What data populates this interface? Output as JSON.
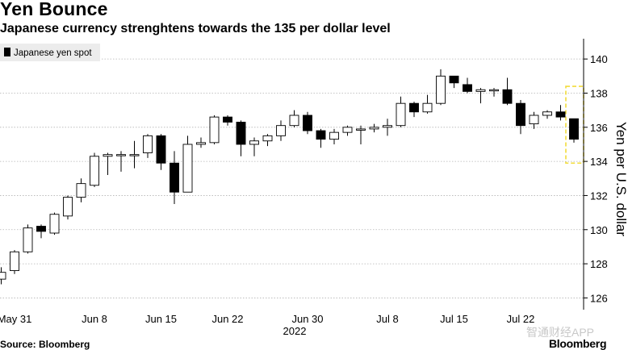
{
  "title": "Yen Bounce",
  "subtitle": "Japanese currency strenghtens towards the 135 per dollar level",
  "source": "Source: Bloomberg",
  "brand": "Bloomberg",
  "watermark": "智通财经APP",
  "colors": {
    "up": "#ffffff",
    "down": "#000000",
    "grid": "#b3b3b3",
    "highlight": "#f2dc3b"
  },
  "chart_data": {
    "type": "candlestick",
    "ylabel": "Yen per U.S. dollar",
    "ylim": [
      125.5,
      141
    ],
    "yticks": [
      126,
      128,
      130,
      132,
      134,
      136,
      138,
      140
    ],
    "legend": {
      "label": "Japanese yen spot",
      "position": "top-left"
    },
    "year_label": "2022",
    "xtick_labels": [
      "May 31",
      "Jun 8",
      "Jun 15",
      "Jun 22",
      "Jun 30",
      "Jul 8",
      "Jul 15",
      "Jul 22"
    ],
    "xtick_index": [
      1,
      7,
      12,
      17,
      23,
      29,
      34,
      39
    ],
    "highlight_range": {
      "from_index": 43,
      "to_index": 43,
      "y_from": 133.9,
      "y_to": 138.4
    },
    "candles": [
      {
        "date": "May 30",
        "open": 127.1,
        "high": 127.8,
        "low": 126.8,
        "close": 127.5
      },
      {
        "date": "May 31",
        "open": 127.6,
        "high": 128.8,
        "low": 127.4,
        "close": 128.7
      },
      {
        "date": "Jun 1",
        "open": 128.7,
        "high": 130.3,
        "low": 128.6,
        "close": 130.1
      },
      {
        "date": "Jun 2",
        "open": 130.2,
        "high": 130.3,
        "low": 129.5,
        "close": 129.9
      },
      {
        "date": "Jun 3",
        "open": 129.8,
        "high": 131.0,
        "low": 129.7,
        "close": 130.9
      },
      {
        "date": "Jun 6",
        "open": 130.8,
        "high": 132.0,
        "low": 130.6,
        "close": 131.9
      },
      {
        "date": "Jun 7",
        "open": 131.9,
        "high": 133.0,
        "low": 131.6,
        "close": 132.7
      },
      {
        "date": "Jun 8",
        "open": 132.6,
        "high": 134.5,
        "low": 132.5,
        "close": 134.3
      },
      {
        "date": "Jun 9",
        "open": 134.3,
        "high": 134.5,
        "low": 133.2,
        "close": 134.4
      },
      {
        "date": "Jun 10",
        "open": 134.4,
        "high": 134.6,
        "low": 133.4,
        "close": 134.4
      },
      {
        "date": "Jun 13",
        "open": 134.4,
        "high": 135.2,
        "low": 133.6,
        "close": 134.4
      },
      {
        "date": "Jun 14",
        "open": 134.5,
        "high": 135.6,
        "low": 134.2,
        "close": 135.5
      },
      {
        "date": "Jun 15",
        "open": 135.5,
        "high": 135.6,
        "low": 133.5,
        "close": 133.9
      },
      {
        "date": "Jun 16",
        "open": 133.9,
        "high": 134.6,
        "low": 131.5,
        "close": 132.2
      },
      {
        "date": "Jun 17",
        "open": 132.2,
        "high": 135.5,
        "low": 132.2,
        "close": 135.0
      },
      {
        "date": "Jun 20",
        "open": 135.0,
        "high": 135.4,
        "low": 134.8,
        "close": 135.1
      },
      {
        "date": "Jun 21",
        "open": 135.1,
        "high": 136.7,
        "low": 135.0,
        "close": 136.6
      },
      {
        "date": "Jun 22",
        "open": 136.6,
        "high": 136.7,
        "low": 136.1,
        "close": 136.3
      },
      {
        "date": "Jun 23",
        "open": 136.3,
        "high": 136.4,
        "low": 134.3,
        "close": 135.0
      },
      {
        "date": "Jun 24",
        "open": 135.0,
        "high": 135.4,
        "low": 134.3,
        "close": 135.2
      },
      {
        "date": "Jun 27",
        "open": 135.2,
        "high": 135.6,
        "low": 134.9,
        "close": 135.5
      },
      {
        "date": "Jun 28",
        "open": 135.5,
        "high": 136.4,
        "low": 135.2,
        "close": 136.1
      },
      {
        "date": "Jun 29",
        "open": 136.1,
        "high": 137.0,
        "low": 136.0,
        "close": 136.7
      },
      {
        "date": "Jun 30",
        "open": 136.7,
        "high": 136.9,
        "low": 135.6,
        "close": 135.8
      },
      {
        "date": "Jul 1",
        "open": 135.8,
        "high": 135.9,
        "low": 134.8,
        "close": 135.3
      },
      {
        "date": "Jul 4",
        "open": 135.3,
        "high": 135.9,
        "low": 135.0,
        "close": 135.7
      },
      {
        "date": "Jul 5",
        "open": 135.7,
        "high": 136.1,
        "low": 135.5,
        "close": 136.0
      },
      {
        "date": "Jul 6",
        "open": 135.9,
        "high": 136.1,
        "low": 135.0,
        "close": 135.9
      },
      {
        "date": "Jul 7",
        "open": 135.9,
        "high": 136.2,
        "low": 135.7,
        "close": 136.0
      },
      {
        "date": "Jul 8",
        "open": 136.0,
        "high": 136.5,
        "low": 135.5,
        "close": 136.1
      },
      {
        "date": "Jul 11",
        "open": 136.1,
        "high": 137.8,
        "low": 136.0,
        "close": 137.4
      },
      {
        "date": "Jul 12",
        "open": 137.4,
        "high": 137.5,
        "low": 136.6,
        "close": 136.9
      },
      {
        "date": "Jul 13",
        "open": 136.9,
        "high": 137.9,
        "low": 136.8,
        "close": 137.4
      },
      {
        "date": "Jul 14",
        "open": 137.4,
        "high": 139.4,
        "low": 137.3,
        "close": 139.0
      },
      {
        "date": "Jul 15",
        "open": 139.0,
        "high": 139.0,
        "low": 138.3,
        "close": 138.6
      },
      {
        "date": "Jul 18",
        "open": 138.5,
        "high": 138.9,
        "low": 138.0,
        "close": 138.1
      },
      {
        "date": "Jul 19",
        "open": 138.1,
        "high": 138.3,
        "low": 137.4,
        "close": 138.2
      },
      {
        "date": "Jul 20",
        "open": 138.2,
        "high": 138.3,
        "low": 137.8,
        "close": 138.2
      },
      {
        "date": "Jul 21",
        "open": 138.2,
        "high": 138.9,
        "low": 137.3,
        "close": 137.4
      },
      {
        "date": "Jul 22",
        "open": 137.4,
        "high": 137.6,
        "low": 135.6,
        "close": 136.1
      },
      {
        "date": "Jul 25",
        "open": 136.2,
        "high": 136.9,
        "low": 135.9,
        "close": 136.7
      },
      {
        "date": "Jul 26",
        "open": 136.7,
        "high": 137.0,
        "low": 136.5,
        "close": 136.9
      },
      {
        "date": "Jul 27",
        "open": 136.9,
        "high": 137.3,
        "low": 136.4,
        "close": 136.6
      },
      {
        "date": "Jul 28",
        "open": 136.5,
        "high": 136.5,
        "low": 135.1,
        "close": 135.3
      }
    ]
  }
}
